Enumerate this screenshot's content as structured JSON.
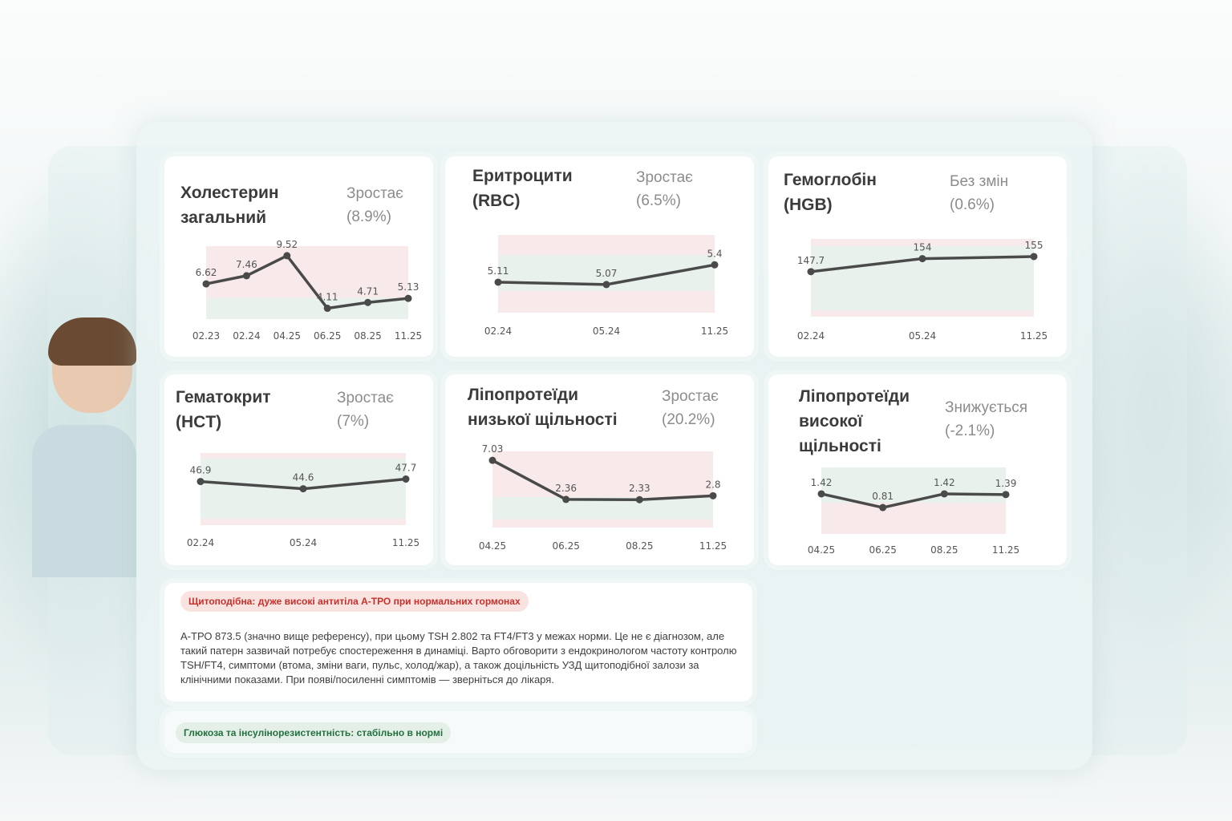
{
  "cards": [
    {
      "title": "Холестерин\nзагальний",
      "trend": "Зростає\n(8.9%)"
    },
    {
      "title": "Еритроцити\n(RBC)",
      "trend": "Зростає\n(6.5%)"
    },
    {
      "title": "Гемоглобін\n(HGB)",
      "trend": "Без змін\n(0.6%)"
    },
    {
      "title": "Гематокрит\n(HCT)",
      "trend": "Зростає\n(7%)"
    },
    {
      "title": "Ліпопротеїди\nнизької щільності",
      "trend": "Зростає\n(20.2%)"
    },
    {
      "title": "Ліпопротеїди\nвисокої\nщільності",
      "trend": "Знижується\n(-2.1%)"
    }
  ],
  "alerts": [
    {
      "badge": "Щитоподібна: дуже високі антитіла А-ТРО при нормальних гормонах",
      "status_color": "#c8302a",
      "text": "А-ТРО 873.5 (значно вище референсу), при цьому TSH 2.802 та FT4/FT3 у межах норми. Це не є діагнозом, але такий патерн зазвичай потребує спостереження в динаміці. Варто обговорити з ендокринологом частоту контролю TSH/FT4, симптоми (втома, зміни ваги, пульс, холод/жар), а також доцільність УЗД щитоподібної залози за клінічними показами. При появі/посиленні симптомів — зверніться до лікаря."
    },
    {
      "badge": "Глюкоза та інсулінорезистентність: стабільно в нормі",
      "status_color": "#23703f"
    }
  ],
  "chart_data": [
    {
      "type": "line",
      "title": "Холестерин загальний",
      "x": [
        "02.23",
        "02.24",
        "04.25",
        "06.25",
        "08.25",
        "11.25"
      ],
      "values": [
        6.62,
        7.46,
        9.52,
        4.11,
        4.71,
        5.13
      ],
      "ylim": [
        3,
        10.5
      ]
    },
    {
      "type": "line",
      "title": "Еритроцити (RBC)",
      "x": [
        "02.24",
        "05.24",
        "11.25"
      ],
      "values": [
        5.11,
        5.07,
        5.4
      ],
      "ylim": [
        4.6,
        5.9
      ]
    },
    {
      "type": "line",
      "title": "Гемоглобін (HGB)",
      "x": [
        "02.24",
        "05.24",
        "11.25"
      ],
      "values": [
        147.7,
        154,
        155
      ],
      "ylim": [
        126,
        163.5
      ]
    },
    {
      "type": "line",
      "title": "Гематокрит (HCT)",
      "x": [
        "02.24",
        "05.24",
        "11.25"
      ],
      "values": [
        46.9,
        44.6,
        47.7
      ],
      "ylim": [
        33,
        56
      ]
    },
    {
      "type": "line",
      "title": "Ліпопротеїди низької щільності",
      "x": [
        "04.25",
        "06.25",
        "08.25",
        "11.25"
      ],
      "values": [
        7.03,
        2.36,
        2.33,
        2.8
      ],
      "ylim": [
        -1,
        8.1
      ]
    },
    {
      "type": "line",
      "title": "Ліпопротеїди високої щільності",
      "x": [
        "04.25",
        "06.25",
        "08.25",
        "11.25"
      ],
      "values": [
        1.42,
        0.81,
        1.42,
        1.39
      ],
      "ylim": [
        -0.37,
        2.6
      ]
    }
  ]
}
